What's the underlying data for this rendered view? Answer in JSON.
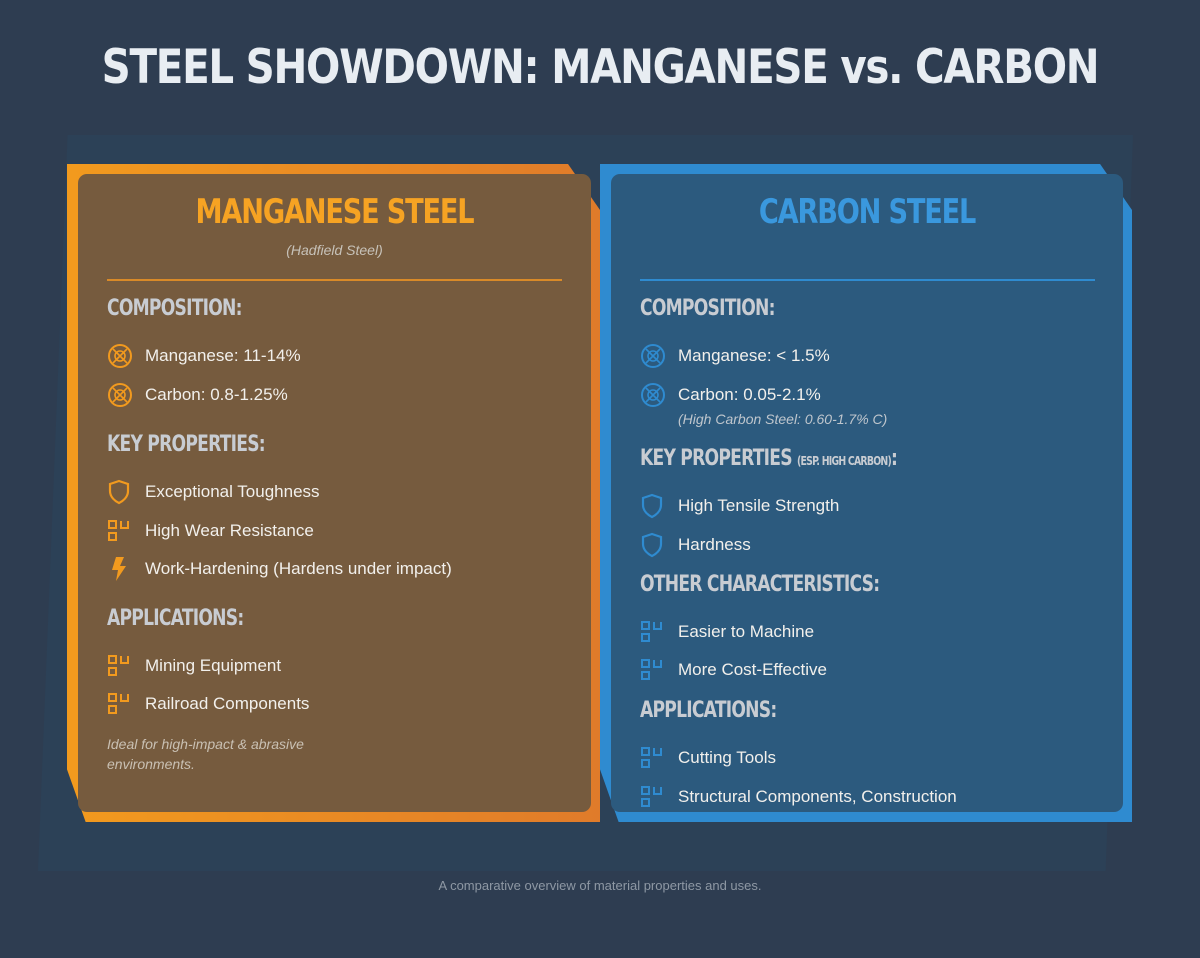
{
  "title": "STEEL SHOWDOWN: MANGANESE vs. CARBON",
  "colors": {
    "orange": "#f29a1e",
    "blue": "#2f8bd0",
    "background": "#2e3d51"
  },
  "manganese": {
    "title": "MANGANESE STEEL",
    "subtitle": "(Hadfield Steel)",
    "composition_heading": "COMPOSITION:",
    "composition": [
      {
        "icon": "atom-icon",
        "text": "Manganese: 11-14%"
      },
      {
        "icon": "atom-icon",
        "text": "Carbon: 0.8-1.25%"
      }
    ],
    "properties_heading": "KEY PROPERTIES:",
    "properties": [
      {
        "icon": "shield-icon",
        "text": "Exceptional Toughness"
      },
      {
        "icon": "blocks-icon",
        "text": "High Wear Resistance"
      },
      {
        "icon": "bolt-icon",
        "text": "Work-Hardening (Hardens under impact)"
      }
    ],
    "applications_heading": "APPLICATIONS:",
    "applications": [
      {
        "icon": "blocks-icon",
        "text": "Mining Equipment"
      },
      {
        "icon": "blocks-icon",
        "text": "Railroad Components"
      }
    ],
    "note": "Ideal for high-impact & abrasive environments."
  },
  "carbon": {
    "title": "CARBON STEEL",
    "composition_heading": "COMPOSITION:",
    "composition": [
      {
        "icon": "atom-icon",
        "text": "Manganese: < 1.5%"
      },
      {
        "icon": "atom-icon",
        "text": "Carbon: 0.05-2.1%",
        "sub": "(High Carbon Steel: 0.60-1.7% C)"
      }
    ],
    "properties_heading": "KEY PROPERTIES",
    "properties_heading_small": "(ESP. HIGH CARBON)",
    "properties_heading_suffix": ":",
    "properties": [
      {
        "icon": "shield-icon",
        "text": "High Tensile Strength"
      },
      {
        "icon": "shield-icon",
        "text": "Hardness"
      }
    ],
    "other_heading": "OTHER CHARACTERISTICS:",
    "other": [
      {
        "icon": "blocks-icon",
        "text": "Easier to Machine"
      },
      {
        "icon": "blocks-icon",
        "text": "More Cost-Effective"
      }
    ],
    "applications_heading": "APPLICATIONS:",
    "applications": [
      {
        "icon": "blocks-icon",
        "text": "Cutting Tools"
      },
      {
        "icon": "blocks-icon",
        "text": "Structural Components, Construction"
      }
    ]
  },
  "footer": "A comparative overview of material properties and uses."
}
